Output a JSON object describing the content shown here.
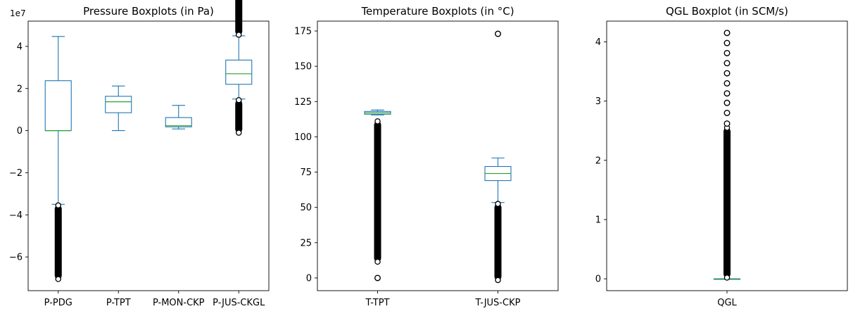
{
  "chart_data": [
    {
      "type": "box",
      "title": "Pressure Boxplots (in Pa)",
      "y_offset_label": "1e7",
      "ylim": [
        -7.6,
        5.2
      ],
      "yticks": [
        -6,
        -4,
        -2,
        0,
        2,
        4
      ],
      "ytick_labels": [
        "−6",
        "−4",
        "−2",
        "0",
        "2",
        "4"
      ],
      "categories": [
        "P-PDG",
        "P-TPT",
        "P-MON-CKP",
        "P-JUS-CKGL"
      ],
      "boxes": [
        {
          "name": "P-PDG",
          "whislo": -3.5,
          "q1": 0.0,
          "med": 0.0,
          "q3": 2.37,
          "whishi": 4.47,
          "fliers_low": [
            -3.55,
            -7.05
          ],
          "fliers_high": null
        },
        {
          "name": "P-TPT",
          "whislo": 0.0,
          "q1": 0.85,
          "med": 1.37,
          "q3": 1.63,
          "whishi": 2.12,
          "fliers_low": null,
          "fliers_high": null
        },
        {
          "name": "P-MON-CKP",
          "whislo": 0.08,
          "q1": 0.18,
          "med": 0.23,
          "q3": 0.62,
          "whishi": 1.2,
          "fliers_low": null,
          "fliers_high": null
        },
        {
          "name": "P-JUS-CKGL",
          "whislo": 1.5,
          "q1": 2.2,
          "med": 2.7,
          "q3": 3.35,
          "whishi": 4.5,
          "fliers_low": [
            -0.1,
            1.45
          ],
          "fliers_high": [
            4.55,
            21.2
          ]
        }
      ],
      "box_scale": 10000000
    },
    {
      "type": "box",
      "title": "Temperature Boxplots (in °C)",
      "ylim": [
        -9,
        182
      ],
      "yticks": [
        0,
        25,
        50,
        75,
        100,
        125,
        150,
        175
      ],
      "ytick_labels": [
        "0",
        "25",
        "50",
        "75",
        "100",
        "125",
        "150",
        "175"
      ],
      "categories": [
        "T-TPT",
        "T-JUS-CKP"
      ],
      "boxes": [
        {
          "name": "T-TPT",
          "whislo": 115.5,
          "q1": 116.0,
          "med": 117.0,
          "q3": 118.0,
          "whishi": 119.0,
          "fliers_low": [
            11.5,
            111.0
          ],
          "fliers_extra": [
            0.0
          ],
          "fliers_high": null
        },
        {
          "name": "T-JUS-CKP",
          "whislo": 53.5,
          "q1": 69.0,
          "med": 74.0,
          "q3": 79.0,
          "whishi": 85.0,
          "fliers_low": [
            -1.5,
            52.5
          ],
          "fliers_high": null,
          "fliers_extra": [
            173.0
          ]
        }
      ]
    },
    {
      "type": "box",
      "title": "QGL Boxplot (in SCM/s)",
      "ylim": [
        -0.2,
        4.35
      ],
      "yticks": [
        0,
        1,
        2,
        3,
        4
      ],
      "ytick_labels": [
        "0",
        "1",
        "2",
        "3",
        "4"
      ],
      "categories": [
        "QGL"
      ],
      "boxes": [
        {
          "name": "QGL",
          "whislo": 0.0,
          "q1": 0.0,
          "med": 0.0,
          "q3": 0.0,
          "whishi": 0.0,
          "fliers_low": null,
          "fliers_high": [
            0.02,
            2.55
          ],
          "fliers_extra": [
            2.62,
            2.8,
            2.97,
            3.13,
            3.3,
            3.47,
            3.64,
            3.81,
            3.98,
            4.15
          ]
        }
      ]
    }
  ]
}
